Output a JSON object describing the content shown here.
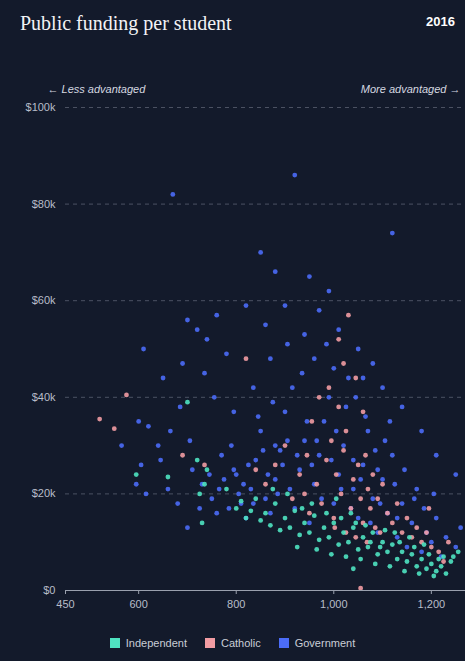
{
  "chart_data": {
    "type": "scatter",
    "title": "Public funding per student",
    "subtitle": "2016",
    "annotations": [
      "← Less advantaged",
      "More advantaged →"
    ],
    "xlim": [
      450,
      1270
    ],
    "xticks": [
      450,
      600,
      800,
      {
        "value": 1000,
        "label": "1,000"
      },
      {
        "value": 1200,
        "label": "1,200"
      }
    ],
    "ylim": [
      0,
      100000
    ],
    "yticks": [
      {
        "value": 0,
        "label": "$0"
      },
      {
        "value": 20000,
        "label": "$20k"
      },
      {
        "value": 40000,
        "label": "$40k"
      },
      {
        "value": 60000,
        "label": "$60k"
      },
      {
        "value": 80000,
        "label": "$80k"
      },
      {
        "value": 100000,
        "label": "$100k"
      }
    ],
    "grid": true,
    "legend": "bottom",
    "series": [
      {
        "name": "Independent",
        "color": "#4fe3c1",
        "x": [
          595,
          660,
          700,
          720,
          725,
          740,
          735,
          730,
          780,
          800,
          810,
          820,
          830,
          840,
          850,
          860,
          870,
          880,
          890,
          900,
          910,
          920,
          930,
          940,
          950,
          960,
          970,
          980,
          990,
          1000,
          1010,
          1020,
          1030,
          1040,
          1050,
          1060,
          1070,
          1080,
          1090,
          1100,
          1110,
          1120,
          1130,
          1140,
          1150,
          1160,
          1170,
          1180,
          1190,
          1200,
          1210,
          1220,
          1230,
          1240,
          1245,
          955,
          985,
          1015,
          1045,
          1075,
          1105,
          1135,
          1165,
          1195,
          1225,
          905,
          935,
          965,
          995,
          1025,
          1055,
          1085,
          1115,
          1145,
          1175,
          1205,
          1255,
          1035,
          1065,
          1095,
          1125,
          1155,
          1185,
          1215,
          875,
          925,
          1005,
          1040
        ],
        "values": [
          24000,
          23500,
          39000,
          27000,
          20000,
          25000,
          22000,
          14000,
          21000,
          17000,
          18500,
          15000,
          16500,
          19000,
          14500,
          16000,
          13500,
          18000,
          12500,
          15000,
          13000,
          16500,
          11500,
          14000,
          12000,
          15500,
          10500,
          13000,
          11000,
          14000,
          9500,
          12000,
          10000,
          13000,
          8500,
          11000,
          9000,
          12000,
          7500,
          10000,
          8000,
          9500,
          6500,
          8000,
          6000,
          7500,
          5000,
          6500,
          4500,
          5500,
          4000,
          5000,
          3500,
          6000,
          7000,
          18000,
          16000,
          15000,
          14000,
          10000,
          12500,
          10000,
          9000,
          7500,
          7000,
          20000,
          17000,
          8500,
          7500,
          7000,
          6500,
          5500,
          5000,
          4000,
          3500,
          3000,
          8000,
          16000,
          13500,
          9000,
          12000,
          11000,
          9500,
          6500,
          21000,
          9000,
          19000,
          4500
        ]
      },
      {
        "name": "Catholic",
        "color": "#f29ca3",
        "x": [
          520,
          550,
          575,
          690,
          735,
          820,
          840,
          860,
          880,
          900,
          915,
          930,
          945,
          955,
          965,
          975,
          985,
          995,
          1000,
          1005,
          1010,
          1015,
          1020,
          1025,
          1030,
          1035,
          1040,
          1045,
          1050,
          1055,
          1060,
          1065,
          1070,
          1075,
          1080,
          1085,
          1090,
          1095,
          1100,
          1110,
          1120,
          1130,
          1140,
          1150,
          1160,
          1170,
          1180,
          1190,
          1200,
          1215,
          1010,
          990,
          1060,
          1020,
          970,
          940,
          950,
          1002,
          1045,
          1025,
          1068,
          1195,
          1225,
          1235,
          1055
        ],
        "values": [
          35500,
          33500,
          40500,
          28000,
          26000,
          48000,
          25000,
          22000,
          26000,
          30000,
          19000,
          24000,
          28000,
          35000,
          22000,
          18000,
          27000,
          31000,
          15000,
          24000,
          38000,
          20000,
          29000,
          33000,
          57000,
          17000,
          23000,
          44000,
          26000,
          19000,
          14000,
          28000,
          21000,
          17000,
          24000,
          13000,
          19000,
          12000,
          22000,
          16000,
          14000,
          18000,
          12000,
          15000,
          11000,
          13000,
          10000,
          12000,
          9000,
          8000,
          52000,
          42000,
          37000,
          47000,
          40000,
          20000,
          16000,
          13000,
          11000,
          12000,
          10000,
          17000,
          6000,
          10000,
          500
        ]
      },
      {
        "name": "Government",
        "color": "#4b6cf7",
        "x": [
          670,
          920,
          1120,
          850,
          880,
          950,
          990,
          900,
          970,
          820,
          760,
          700,
          720,
          740,
          610,
          780,
          860,
          1010,
          1050,
          1080,
          1100,
          1140,
          1180,
          1210,
          1250,
          690,
          650,
          600,
          620,
          640,
          595,
          605,
          615,
          660,
          680,
          700,
          710,
          730,
          750,
          760,
          770,
          790,
          800,
          810,
          820,
          830,
          840,
          850,
          860,
          870,
          880,
          890,
          900,
          910,
          920,
          930,
          940,
          950,
          960,
          970,
          980,
          990,
          1000,
          1010,
          1020,
          1030,
          1040,
          1050,
          1060,
          1070,
          1080,
          1090,
          1100,
          1110,
          1120,
          1130,
          1140,
          1150,
          1160,
          1170,
          1180,
          1190,
          1200,
          1210,
          1220,
          1230,
          1250,
          1260,
          935,
          960,
          915,
          875,
          845,
          825,
          805,
          785,
          765,
          745,
          725,
          705,
          685,
          665,
          645,
          1005,
          1025,
          1045,
          1065,
          1085,
          1105,
          1125,
          1145,
          1165,
          1185,
          1205,
          955,
          975,
          995,
          1015,
          1035,
          1055,
          1075,
          1095,
          885,
          895,
          905,
          865,
          855,
          835,
          815,
          795,
          775,
          1000,
          940,
          985,
          1060,
          1115,
          735,
          755,
          795,
          835,
          870,
          905,
          565,
          925,
          945,
          965,
          1040,
          880,
          1130,
          1090
        ],
        "values": [
          82000,
          86000,
          74000,
          70000,
          66000,
          65000,
          62000,
          59000,
          58000,
          59000,
          57000,
          56000,
          54000,
          52000,
          50000,
          49000,
          55000,
          54000,
          50000,
          47000,
          42000,
          38000,
          33000,
          28000,
          24000,
          47000,
          44000,
          35000,
          34000,
          30000,
          22000,
          26000,
          20000,
          21000,
          18000,
          13000,
          25000,
          22000,
          19000,
          16000,
          28000,
          30000,
          24000,
          18000,
          15000,
          21000,
          27000,
          33000,
          19000,
          16000,
          23000,
          29000,
          37000,
          21000,
          17000,
          25000,
          31000,
          14000,
          22000,
          28000,
          35000,
          40000,
          18000,
          24000,
          30000,
          44000,
          21000,
          15000,
          26000,
          33000,
          19000,
          12000,
          23000,
          16000,
          28000,
          11000,
          18000,
          9000,
          14000,
          21000,
          8000,
          12000,
          10000,
          15000,
          7000,
          11000,
          9000,
          13000,
          45000,
          48000,
          42000,
          39000,
          36000,
          26000,
          20000,
          17000,
          21000,
          24000,
          17000,
          31000,
          38000,
          33000,
          27000,
          33000,
          38000,
          40000,
          36000,
          29000,
          31000,
          22000,
          25000,
          19000,
          17000,
          20000,
          26000,
          19000,
          27000,
          21000,
          17000,
          23000,
          14000,
          18000,
          20000,
          26000,
          31000,
          24000,
          29000,
          18000,
          22000,
          25000,
          23000,
          46000,
          53000,
          51000,
          44000,
          35000,
          45000,
          40000,
          37000,
          42000,
          48000,
          51000,
          30000,
          28000,
          35000,
          31000,
          27000,
          30000,
          15000,
          25000
        ]
      }
    ]
  }
}
